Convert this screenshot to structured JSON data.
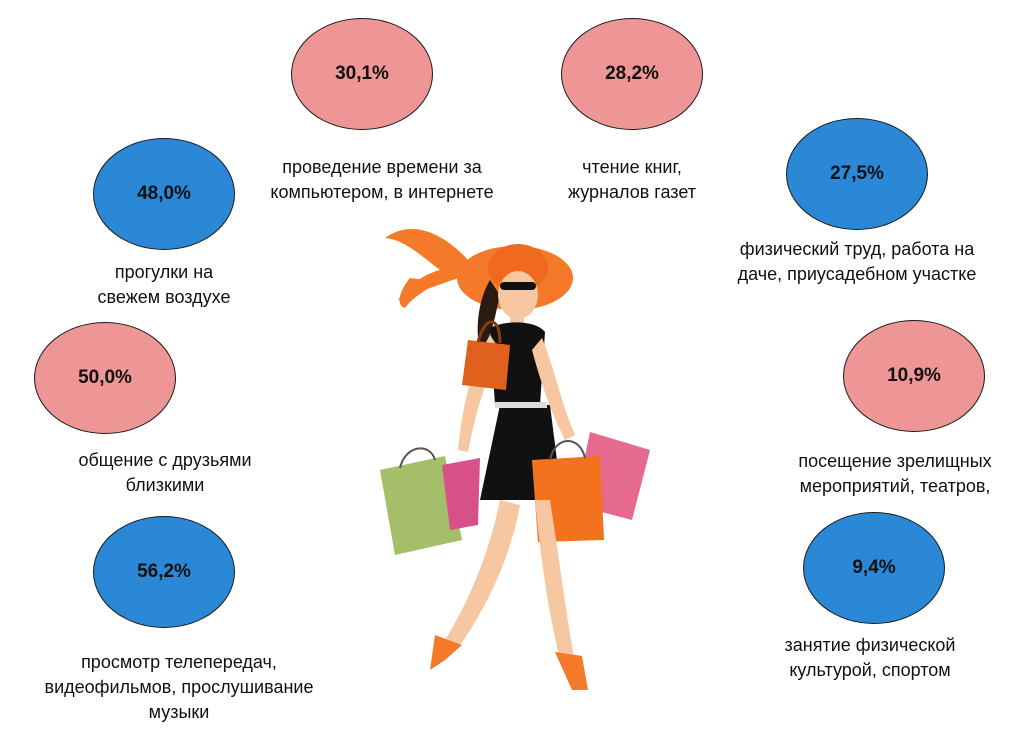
{
  "colors": {
    "pink": "#EE9595",
    "blue": "#2A88D6"
  },
  "items": [
    {
      "value": "30,1%",
      "color": "pink",
      "label": [
        "проведение времени за",
        "компьютером, в интернете"
      ]
    },
    {
      "value": "28,2%",
      "color": "pink",
      "label": [
        "чтение книг,",
        "журналов газет"
      ]
    },
    {
      "value": "48,0%",
      "color": "blue",
      "label": [
        "прогулки на",
        "свежем воздухе"
      ]
    },
    {
      "value": "27,5%",
      "color": "blue",
      "label": [
        "физический труд, работа на",
        "даче, приусадебном участке"
      ]
    },
    {
      "value": "50,0%",
      "color": "pink",
      "label": [
        "общение с друзьями",
        "близкими"
      ]
    },
    {
      "value": "10,9%",
      "color": "pink",
      "label": [
        "посещение зрелищных",
        "мероприятий, театров,"
      ]
    },
    {
      "value": "56,2%",
      "color": "blue",
      "label": [
        "просмотр телепередач,",
        "видеофильмов, прослушивание",
        "музыки"
      ]
    },
    {
      "value": "9,4%",
      "color": "blue",
      "label": [
        "занятие физической",
        "культурой,  спортом"
      ]
    }
  ],
  "illustration": "woman-shopping-bags"
}
